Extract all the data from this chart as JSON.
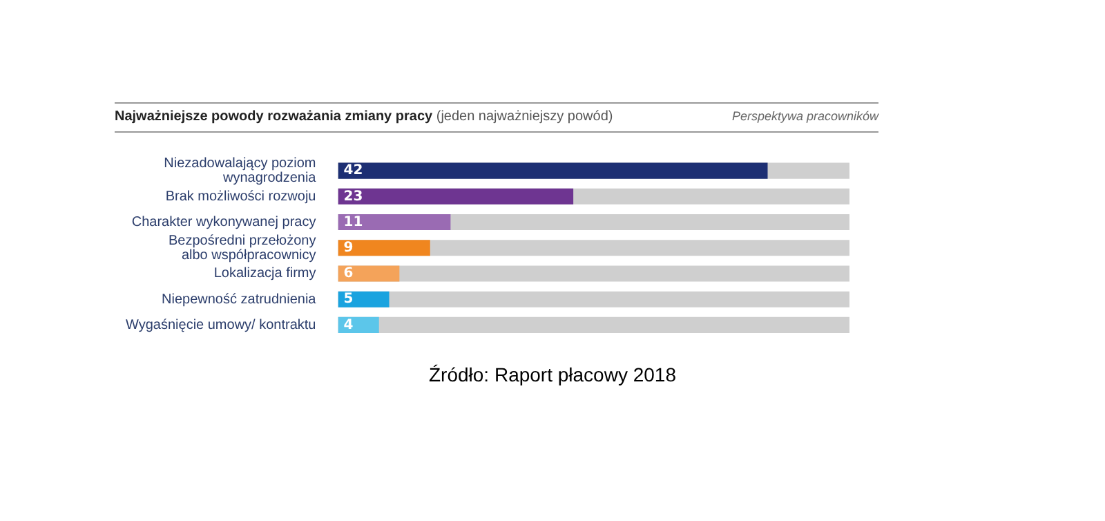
{
  "chart_data": {
    "type": "bar",
    "orientation": "horizontal",
    "title": "Najważniejsze powody rozważania zmiany pracy",
    "subtitle": "(jeden najważniejszy powód)",
    "categories": [
      "Niezadowalający poziom wynagrodzenia",
      "Brak możliwości rozwoju",
      "Charakter wykonywanej pracy",
      "Bezpośredni przełożony albo współpracownicy",
      "Lokalizacja firmy",
      "Niepewność zatrudnienia",
      "Wygaśnięcie umowy/ kontraktu"
    ],
    "values": [
      42,
      23,
      11,
      9,
      6,
      5,
      4
    ],
    "colors": [
      "#1d2f73",
      "#6e3591",
      "#9a6bb3",
      "#f0861f",
      "#f4a35a",
      "#1aa3df",
      "#5cc6ea"
    ],
    "xlim": [
      0,
      50
    ],
    "tick_labels": false,
    "legend": false,
    "data_labels": true,
    "annotations": [
      "Perspektywa pracowników",
      "Źródło: Raport płacowy 2018"
    ]
  }
}
